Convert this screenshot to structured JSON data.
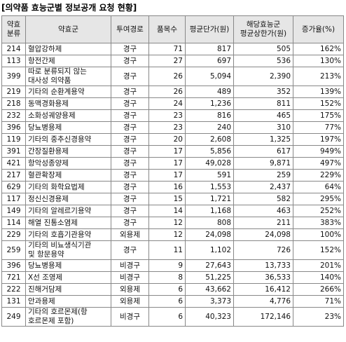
{
  "header": {
    "title": "[의약품 효능군별 정보공개 요청 현황]"
  },
  "table": {
    "columns": [
      "약효\n분류",
      "약효군",
      "투여경로",
      "품목수",
      "평균단가(원)",
      "해당효능군\n평균상한가(원)",
      "증가율(%)"
    ],
    "rows": [
      [
        "214",
        "혈압강하제",
        "경구",
        "71",
        "817",
        "505",
        "162%"
      ],
      [
        "113",
        "항전간제",
        "경구",
        "27",
        "697",
        "536",
        "130%"
      ],
      [
        "399",
        "따로 분류되지 않는\n대사성 의약품",
        "경구",
        "26",
        "5,094",
        "2,390",
        "213%"
      ],
      [
        "219",
        "기타의 순환계용약",
        "경구",
        "26",
        "489",
        "352",
        "139%"
      ],
      [
        "218",
        "동맥경화용제",
        "경구",
        "24",
        "1,236",
        "811",
        "152%"
      ],
      [
        "232",
        "소화성궤양용제",
        "경구",
        "23",
        "816",
        "465",
        "175%"
      ],
      [
        "396",
        "당뇨병용제",
        "경구",
        "23",
        "240",
        "310",
        "77%"
      ],
      [
        "119",
        "기타의 중추신경용약",
        "경구",
        "20",
        "2,608",
        "1,325",
        "197%"
      ],
      [
        "391",
        "간장질환용제",
        "경구",
        "17",
        "5,856",
        "617",
        "949%"
      ],
      [
        "421",
        "항악성종양제",
        "경구",
        "17",
        "49,028",
        "9,871",
        "497%"
      ],
      [
        "217",
        "혈관확장제",
        "경구",
        "17",
        "591",
        "259",
        "229%"
      ],
      [
        "629",
        "기타의 화학요법제",
        "경구",
        "16",
        "1,553",
        "2,437",
        "64%"
      ],
      [
        "117",
        "정신신경용제",
        "경구",
        "15",
        "1,721",
        "582",
        "295%"
      ],
      [
        "149",
        "기타의 알레르기용약",
        "경구",
        "14",
        "1,168",
        "463",
        "252%"
      ],
      [
        "114",
        "해열 진통소염제",
        "경구",
        "12",
        "808",
        "211",
        "383%"
      ],
      [
        "229",
        "기타의 호흡기관용약",
        "외용제",
        "12",
        "24,098",
        "24,098",
        "100%"
      ],
      [
        "259",
        "기타의 비뇨생식기관\n및 항문용약",
        "경구",
        "11",
        "1,102",
        "726",
        "152%"
      ],
      [
        "396",
        "당뇨병용제",
        "비경구",
        "9",
        "27,643",
        "13,733",
        "201%"
      ],
      [
        "721",
        "X선 조영제",
        "비경구",
        "8",
        "51,225",
        "36,533",
        "140%"
      ],
      [
        "222",
        "진해거담제",
        "외용제",
        "6",
        "43,662",
        "16,412",
        "266%"
      ],
      [
        "131",
        "안과용제",
        "외용제",
        "6",
        "3,373",
        "4,776",
        "71%"
      ],
      [
        "249",
        "기타의 호르몬제(항\n호르몬제 포함)",
        "비경구",
        "6",
        "40,323",
        "172,146",
        "23%"
      ]
    ]
  }
}
